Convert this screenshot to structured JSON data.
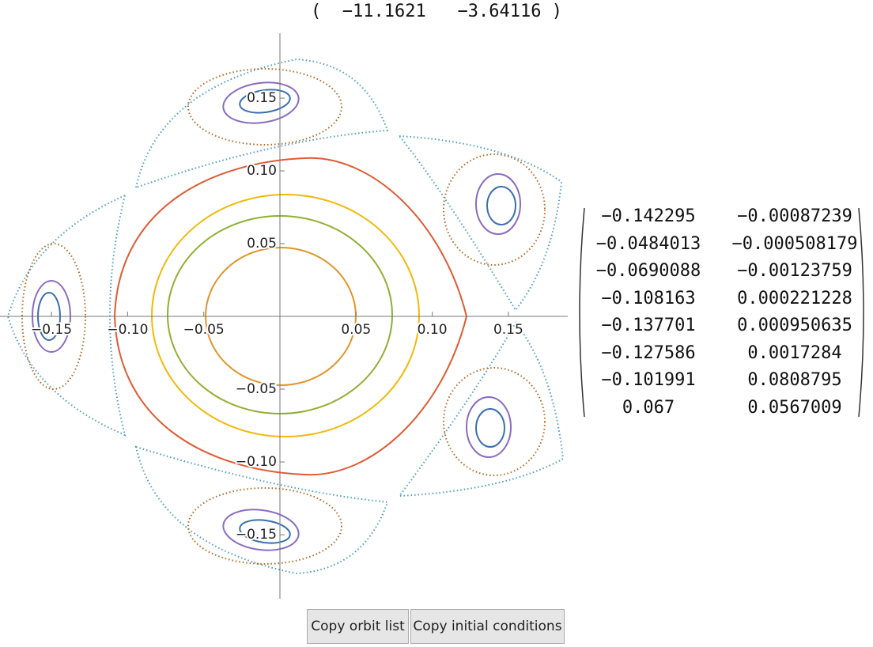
{
  "top_vector": [
    "−11.1621",
    "−3.64116"
  ],
  "chart_data": {
    "type": "phase-portrait",
    "xlim": [
      -0.1838,
      0.189
    ],
    "ylim": [
      -0.194,
      0.1946
    ],
    "xticks": [
      {
        "value": -0.15,
        "label": "−0.15"
      },
      {
        "value": -0.1,
        "label": "−0.10"
      },
      {
        "value": -0.05,
        "label": "−0.05"
      },
      0.05,
      {
        "value": 0.1,
        "label": "0.10"
      },
      0.15
    ],
    "yticks": [
      {
        "value": -0.15,
        "label": "−0.15"
      },
      {
        "value": -0.1,
        "label": "−0.10"
      },
      {
        "value": -0.05,
        "label": "−0.05"
      },
      0.05,
      {
        "value": 0.1,
        "label": "0.10"
      },
      0.15
    ]
  },
  "matrix": [
    [
      "−0.142295",
      "−0.00087239"
    ],
    [
      "−0.0484013",
      "−0.000508179"
    ],
    [
      "−0.0690088",
      "−0.00123759"
    ],
    [
      "−0.108163",
      "0.000221228"
    ],
    [
      "−0.137701",
      "0.000950635"
    ],
    [
      "−0.127586",
      "0.0017284"
    ],
    [
      "−0.101991",
      "0.0808795"
    ],
    [
      "0.067",
      "0.0567009"
    ]
  ],
  "buttons": [
    "Copy orbit list",
    "Copy initial conditions"
  ]
}
